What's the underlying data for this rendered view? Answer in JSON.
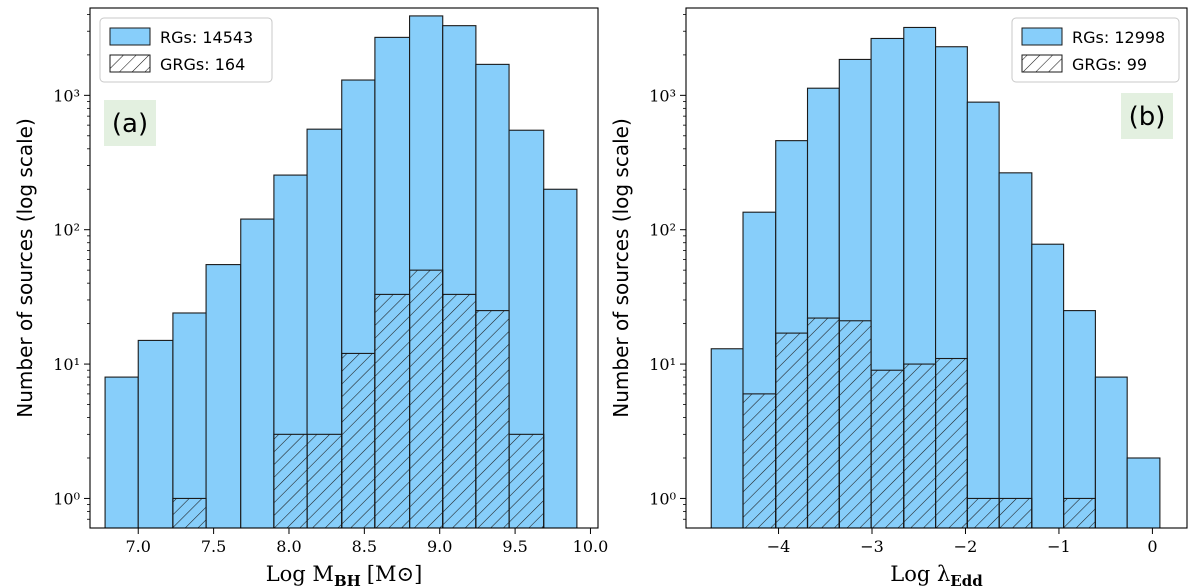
{
  "chart_data": [
    {
      "panel_label": "(a)",
      "type": "bar",
      "hist_edges": [
        6.78,
        7.0,
        7.23,
        7.45,
        7.68,
        7.9,
        8.12,
        8.35,
        8.57,
        8.8,
        9.02,
        9.24,
        9.46,
        9.69,
        9.91
      ],
      "series": [
        {
          "name": "RGs",
          "legend": "RGs:  14543",
          "values": [
            8,
            15,
            24,
            55,
            120,
            255,
            560,
            1300,
            2700,
            3900,
            3300,
            1700,
            550,
            200
          ]
        },
        {
          "name": "GRGs",
          "legend": "GRGs:  164",
          "values": [
            0,
            0,
            1,
            0,
            0,
            3,
            3,
            12,
            33,
            50,
            33,
            25,
            3,
            0
          ]
        }
      ],
      "xlabel": "Log M",
      "xlabel_sub": "BH",
      "xlabel_unit": "[M⊙]",
      "ylabel": "Number of sources (log scale)",
      "xlim": [
        6.68,
        10.05
      ],
      "ylim_log10": [
        -0.22,
        3.65
      ],
      "xticks": [
        "7.0",
        "7.5",
        "8.0",
        "8.5",
        "9.0",
        "9.5",
        "10.0"
      ],
      "xtick_values": [
        7.0,
        7.5,
        8.0,
        8.5,
        9.0,
        9.5,
        10.0
      ],
      "yticks": [
        "10⁰",
        "10¹",
        "10²",
        "10³"
      ],
      "y_log_scale": true,
      "grid": false,
      "legend_placement": "top-left",
      "colors": {
        "rgs_fill": "#87cefa",
        "edge": "#1a1a1a",
        "label_bg": "#e3f0e0"
      }
    },
    {
      "panel_label": "(b)",
      "type": "bar",
      "hist_edges": [
        -4.72,
        -4.38,
        -4.03,
        -3.69,
        -3.35,
        -3.01,
        -2.66,
        -2.32,
        -1.98,
        -1.64,
        -1.29,
        -0.95,
        -0.61,
        -0.27,
        0.08
      ],
      "series": [
        {
          "name": "RGs",
          "legend": "RGs:  12998",
          "values": [
            13,
            135,
            460,
            1130,
            1850,
            2650,
            3200,
            2300,
            890,
            265,
            78,
            25,
            8,
            2
          ]
        },
        {
          "name": "GRGs",
          "legend": "GRGs:  99",
          "values": [
            0,
            6,
            17,
            22,
            21,
            9,
            10,
            11,
            1,
            1,
            0,
            1,
            0,
            0
          ]
        }
      ],
      "xlabel": "Log λ",
      "xlabel_sub": "Edd",
      "xlabel_unit": "",
      "ylabel": "Number of sources (log scale)",
      "xlim": [
        -4.99,
        0.37
      ],
      "ylim_log10": [
        -0.22,
        3.65
      ],
      "xticks": [
        "−4",
        "−3",
        "−2",
        "−1",
        "0"
      ],
      "xtick_values": [
        -4,
        -3,
        -2,
        -1,
        0
      ],
      "yticks": [
        "10⁰",
        "10¹",
        "10²",
        "10³"
      ],
      "y_log_scale": true,
      "grid": false,
      "legend_placement": "top-right",
      "colors": {
        "rgs_fill": "#87cefa",
        "edge": "#1a1a1a",
        "label_bg": "#e3f0e0"
      }
    }
  ]
}
